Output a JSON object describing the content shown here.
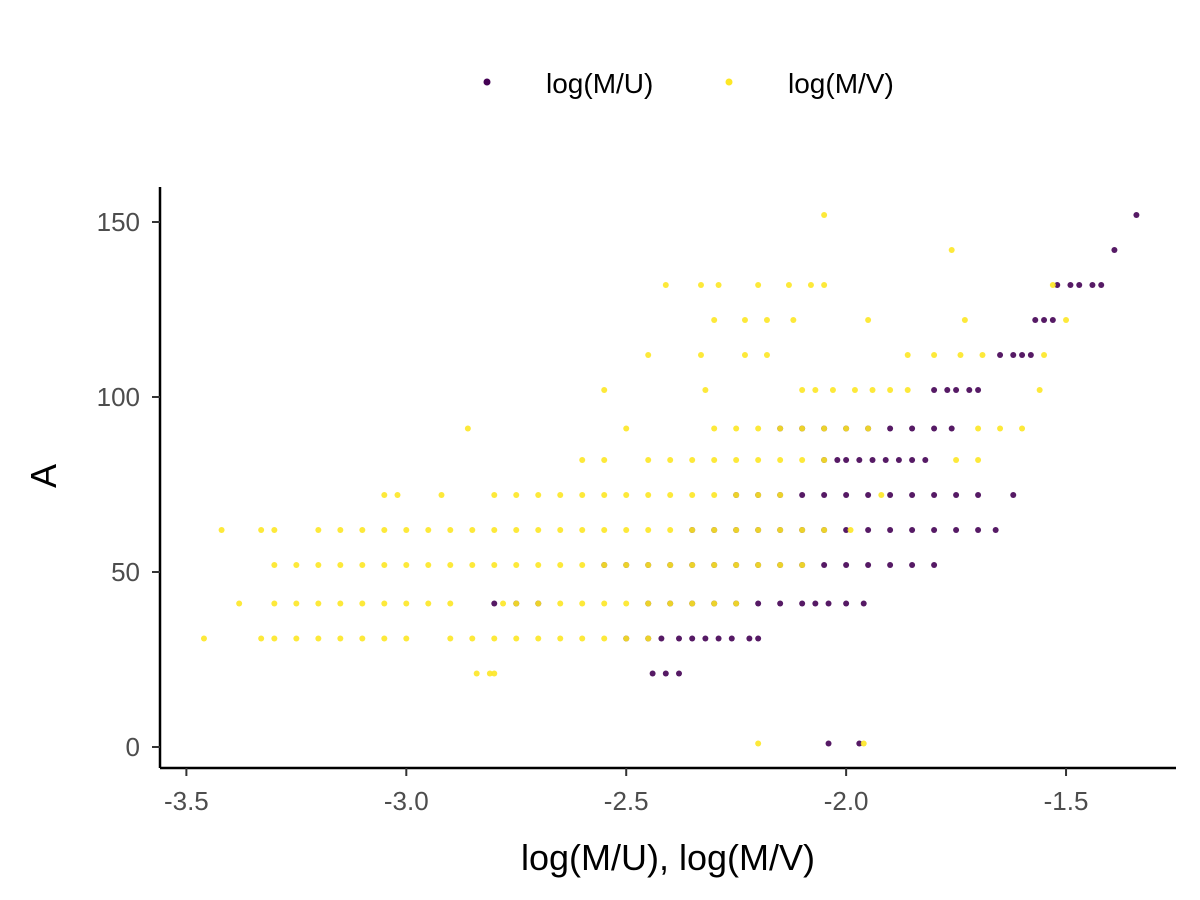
{
  "chart_data": {
    "type": "scatter",
    "xlabel": "log(M/U), log(M/V)",
    "ylabel": "A",
    "xlim": [
      -3.56,
      -1.25
    ],
    "ylim": [
      -6,
      160
    ],
    "x_ticks": [
      -3.5,
      -3.0,
      -2.5,
      -2.0,
      -1.5
    ],
    "x_tick_labels": [
      "-3.5",
      "-3.0",
      "-2.5",
      "-2.0",
      "-1.5"
    ],
    "y_ticks": [
      0,
      50,
      100,
      150
    ],
    "y_tick_labels": [
      "0",
      "50",
      "100",
      "150"
    ],
    "grid": false,
    "legend_position": "top",
    "legend": [
      {
        "label": "log(M/U)",
        "color": "#440154"
      },
      {
        "label": "log(M/V)",
        "color": "#FDE725"
      }
    ],
    "series": [
      {
        "name": "log(M/U)",
        "color": "#440154",
        "points": [
          [
            -1.34,
            152
          ],
          [
            -1.39,
            142
          ],
          [
            -1.52,
            132
          ],
          [
            -1.49,
            132
          ],
          [
            -1.47,
            132
          ],
          [
            -1.44,
            132
          ],
          [
            -1.42,
            132
          ],
          [
            -1.57,
            122
          ],
          [
            -1.55,
            122
          ],
          [
            -1.53,
            122
          ],
          [
            -1.65,
            112
          ],
          [
            -1.62,
            112
          ],
          [
            -1.6,
            112
          ],
          [
            -1.58,
            112
          ],
          [
            -1.8,
            102
          ],
          [
            -1.77,
            102
          ],
          [
            -1.75,
            102
          ],
          [
            -1.72,
            102
          ],
          [
            -1.7,
            102
          ],
          [
            -2.15,
            91
          ],
          [
            -2.1,
            91
          ],
          [
            -2.05,
            91
          ],
          [
            -2.0,
            91
          ],
          [
            -1.95,
            91
          ],
          [
            -1.9,
            91
          ],
          [
            -1.85,
            91
          ],
          [
            -1.8,
            91
          ],
          [
            -1.76,
            91
          ],
          [
            -2.05,
            82
          ],
          [
            -2.02,
            82
          ],
          [
            -2.0,
            82
          ],
          [
            -1.97,
            82
          ],
          [
            -1.94,
            82
          ],
          [
            -1.91,
            82
          ],
          [
            -1.88,
            82
          ],
          [
            -1.85,
            82
          ],
          [
            -1.82,
            82
          ],
          [
            -2.25,
            72
          ],
          [
            -2.2,
            72
          ],
          [
            -2.15,
            72
          ],
          [
            -2.1,
            72
          ],
          [
            -2.05,
            72
          ],
          [
            -2.0,
            72
          ],
          [
            -1.95,
            72
          ],
          [
            -1.9,
            72
          ],
          [
            -1.85,
            72
          ],
          [
            -1.8,
            72
          ],
          [
            -1.75,
            72
          ],
          [
            -1.7,
            72
          ],
          [
            -1.62,
            72
          ],
          [
            -2.35,
            62
          ],
          [
            -2.3,
            62
          ],
          [
            -2.25,
            62
          ],
          [
            -2.2,
            62
          ],
          [
            -2.15,
            62
          ],
          [
            -2.1,
            62
          ],
          [
            -2.05,
            62
          ],
          [
            -2.0,
            62
          ],
          [
            -1.95,
            62
          ],
          [
            -1.9,
            62
          ],
          [
            -1.85,
            62
          ],
          [
            -1.8,
            62
          ],
          [
            -1.75,
            62
          ],
          [
            -1.7,
            62
          ],
          [
            -1.66,
            62
          ],
          [
            -2.55,
            52
          ],
          [
            -2.5,
            52
          ],
          [
            -2.45,
            52
          ],
          [
            -2.4,
            52
          ],
          [
            -2.35,
            52
          ],
          [
            -2.3,
            52
          ],
          [
            -2.25,
            52
          ],
          [
            -2.2,
            52
          ],
          [
            -2.15,
            52
          ],
          [
            -2.1,
            52
          ],
          [
            -2.05,
            52
          ],
          [
            -2.0,
            52
          ],
          [
            -1.95,
            52
          ],
          [
            -1.9,
            52
          ],
          [
            -1.85,
            52
          ],
          [
            -1.8,
            52
          ],
          [
            -2.8,
            41
          ],
          [
            -2.75,
            41
          ],
          [
            -2.7,
            41
          ],
          [
            -2.45,
            41
          ],
          [
            -2.4,
            41
          ],
          [
            -2.35,
            41
          ],
          [
            -2.3,
            41
          ],
          [
            -2.25,
            41
          ],
          [
            -2.2,
            41
          ],
          [
            -2.15,
            41
          ],
          [
            -2.1,
            41
          ],
          [
            -2.07,
            41
          ],
          [
            -2.04,
            41
          ],
          [
            -2.0,
            41
          ],
          [
            -1.96,
            41
          ],
          [
            -2.5,
            31
          ],
          [
            -2.45,
            31
          ],
          [
            -2.42,
            31
          ],
          [
            -2.38,
            31
          ],
          [
            -2.35,
            31
          ],
          [
            -2.32,
            31
          ],
          [
            -2.29,
            31
          ],
          [
            -2.26,
            31
          ],
          [
            -2.22,
            31
          ],
          [
            -2.2,
            31
          ],
          [
            -2.44,
            21
          ],
          [
            -2.41,
            21
          ],
          [
            -2.38,
            21
          ],
          [
            -2.04,
            1
          ],
          [
            -1.97,
            1
          ]
        ]
      },
      {
        "name": "log(M/V)",
        "color": "#FDE725",
        "points": [
          [
            -2.05,
            152
          ],
          [
            -1.76,
            142
          ],
          [
            -2.41,
            132
          ],
          [
            -2.33,
            132
          ],
          [
            -2.29,
            132
          ],
          [
            -2.2,
            132
          ],
          [
            -2.13,
            132
          ],
          [
            -2.08,
            132
          ],
          [
            -2.05,
            132
          ],
          [
            -1.53,
            132
          ],
          [
            -2.3,
            122
          ],
          [
            -2.23,
            122
          ],
          [
            -2.18,
            122
          ],
          [
            -2.12,
            122
          ],
          [
            -1.95,
            122
          ],
          [
            -1.73,
            122
          ],
          [
            -1.5,
            122
          ],
          [
            -2.45,
            112
          ],
          [
            -2.33,
            112
          ],
          [
            -2.23,
            112
          ],
          [
            -2.18,
            112
          ],
          [
            -1.86,
            112
          ],
          [
            -1.8,
            112
          ],
          [
            -1.74,
            112
          ],
          [
            -1.69,
            112
          ],
          [
            -1.55,
            112
          ],
          [
            -2.55,
            102
          ],
          [
            -2.32,
            102
          ],
          [
            -2.1,
            102
          ],
          [
            -2.07,
            102
          ],
          [
            -2.03,
            102
          ],
          [
            -1.98,
            102
          ],
          [
            -1.94,
            102
          ],
          [
            -1.9,
            102
          ],
          [
            -1.86,
            102
          ],
          [
            -1.56,
            102
          ],
          [
            -2.86,
            91
          ],
          [
            -2.5,
            91
          ],
          [
            -2.3,
            91
          ],
          [
            -2.25,
            91
          ],
          [
            -2.2,
            91
          ],
          [
            -2.15,
            91
          ],
          [
            -2.1,
            91
          ],
          [
            -2.05,
            91
          ],
          [
            -2.0,
            91
          ],
          [
            -1.95,
            91
          ],
          [
            -1.7,
            91
          ],
          [
            -1.65,
            91
          ],
          [
            -1.6,
            91
          ],
          [
            -2.6,
            82
          ],
          [
            -2.55,
            82
          ],
          [
            -2.45,
            82
          ],
          [
            -2.4,
            82
          ],
          [
            -2.35,
            82
          ],
          [
            -2.3,
            82
          ],
          [
            -2.25,
            82
          ],
          [
            -2.2,
            82
          ],
          [
            -2.15,
            82
          ],
          [
            -2.1,
            82
          ],
          [
            -2.05,
            82
          ],
          [
            -1.75,
            82
          ],
          [
            -1.7,
            82
          ],
          [
            -3.05,
            72
          ],
          [
            -3.02,
            72
          ],
          [
            -2.92,
            72
          ],
          [
            -2.8,
            72
          ],
          [
            -2.75,
            72
          ],
          [
            -2.7,
            72
          ],
          [
            -2.65,
            72
          ],
          [
            -2.6,
            72
          ],
          [
            -2.55,
            72
          ],
          [
            -2.5,
            72
          ],
          [
            -2.45,
            72
          ],
          [
            -2.4,
            72
          ],
          [
            -2.35,
            72
          ],
          [
            -2.3,
            72
          ],
          [
            -2.25,
            72
          ],
          [
            -2.2,
            72
          ],
          [
            -2.15,
            72
          ],
          [
            -1.92,
            72
          ],
          [
            -3.42,
            62
          ],
          [
            -3.33,
            62
          ],
          [
            -3.3,
            62
          ],
          [
            -3.2,
            62
          ],
          [
            -3.15,
            62
          ],
          [
            -3.1,
            62
          ],
          [
            -3.05,
            62
          ],
          [
            -3.0,
            62
          ],
          [
            -2.95,
            62
          ],
          [
            -2.9,
            62
          ],
          [
            -2.85,
            62
          ],
          [
            -2.8,
            62
          ],
          [
            -2.75,
            62
          ],
          [
            -2.7,
            62
          ],
          [
            -2.65,
            62
          ],
          [
            -2.6,
            62
          ],
          [
            -2.55,
            62
          ],
          [
            -2.5,
            62
          ],
          [
            -2.45,
            62
          ],
          [
            -2.4,
            62
          ],
          [
            -2.35,
            62
          ],
          [
            -2.3,
            62
          ],
          [
            -2.25,
            62
          ],
          [
            -2.2,
            62
          ],
          [
            -2.15,
            62
          ],
          [
            -2.1,
            62
          ],
          [
            -2.05,
            62
          ],
          [
            -1.99,
            62
          ],
          [
            -3.3,
            52
          ],
          [
            -3.25,
            52
          ],
          [
            -3.2,
            52
          ],
          [
            -3.15,
            52
          ],
          [
            -3.1,
            52
          ],
          [
            -3.05,
            52
          ],
          [
            -3.0,
            52
          ],
          [
            -2.95,
            52
          ],
          [
            -2.9,
            52
          ],
          [
            -2.85,
            52
          ],
          [
            -2.8,
            52
          ],
          [
            -2.75,
            52
          ],
          [
            -2.7,
            52
          ],
          [
            -2.65,
            52
          ],
          [
            -2.6,
            52
          ],
          [
            -2.55,
            52
          ],
          [
            -2.5,
            52
          ],
          [
            -2.45,
            52
          ],
          [
            -2.4,
            52
          ],
          [
            -2.35,
            52
          ],
          [
            -2.3,
            52
          ],
          [
            -2.25,
            52
          ],
          [
            -2.2,
            52
          ],
          [
            -2.15,
            52
          ],
          [
            -2.1,
            52
          ],
          [
            -3.38,
            41
          ],
          [
            -3.3,
            41
          ],
          [
            -3.25,
            41
          ],
          [
            -3.2,
            41
          ],
          [
            -3.15,
            41
          ],
          [
            -3.1,
            41
          ],
          [
            -3.05,
            41
          ],
          [
            -3.0,
            41
          ],
          [
            -2.95,
            41
          ],
          [
            -2.9,
            41
          ],
          [
            -2.78,
            41
          ],
          [
            -2.75,
            41
          ],
          [
            -2.7,
            41
          ],
          [
            -2.65,
            41
          ],
          [
            -2.6,
            41
          ],
          [
            -2.55,
            41
          ],
          [
            -2.5,
            41
          ],
          [
            -2.45,
            41
          ],
          [
            -2.4,
            41
          ],
          [
            -2.35,
            41
          ],
          [
            -2.3,
            41
          ],
          [
            -2.25,
            41
          ],
          [
            -3.46,
            31
          ],
          [
            -3.33,
            31
          ],
          [
            -3.3,
            31
          ],
          [
            -3.25,
            31
          ],
          [
            -3.2,
            31
          ],
          [
            -3.15,
            31
          ],
          [
            -3.1,
            31
          ],
          [
            -3.05,
            31
          ],
          [
            -3.0,
            31
          ],
          [
            -2.9,
            31
          ],
          [
            -2.85,
            31
          ],
          [
            -2.8,
            31
          ],
          [
            -2.75,
            31
          ],
          [
            -2.7,
            31
          ],
          [
            -2.65,
            31
          ],
          [
            -2.6,
            31
          ],
          [
            -2.55,
            31
          ],
          [
            -2.5,
            31
          ],
          [
            -2.45,
            31
          ],
          [
            -2.84,
            21
          ],
          [
            -2.81,
            21
          ],
          [
            -2.8,
            21
          ],
          [
            -2.2,
            1
          ],
          [
            -1.96,
            1
          ]
        ]
      }
    ]
  }
}
